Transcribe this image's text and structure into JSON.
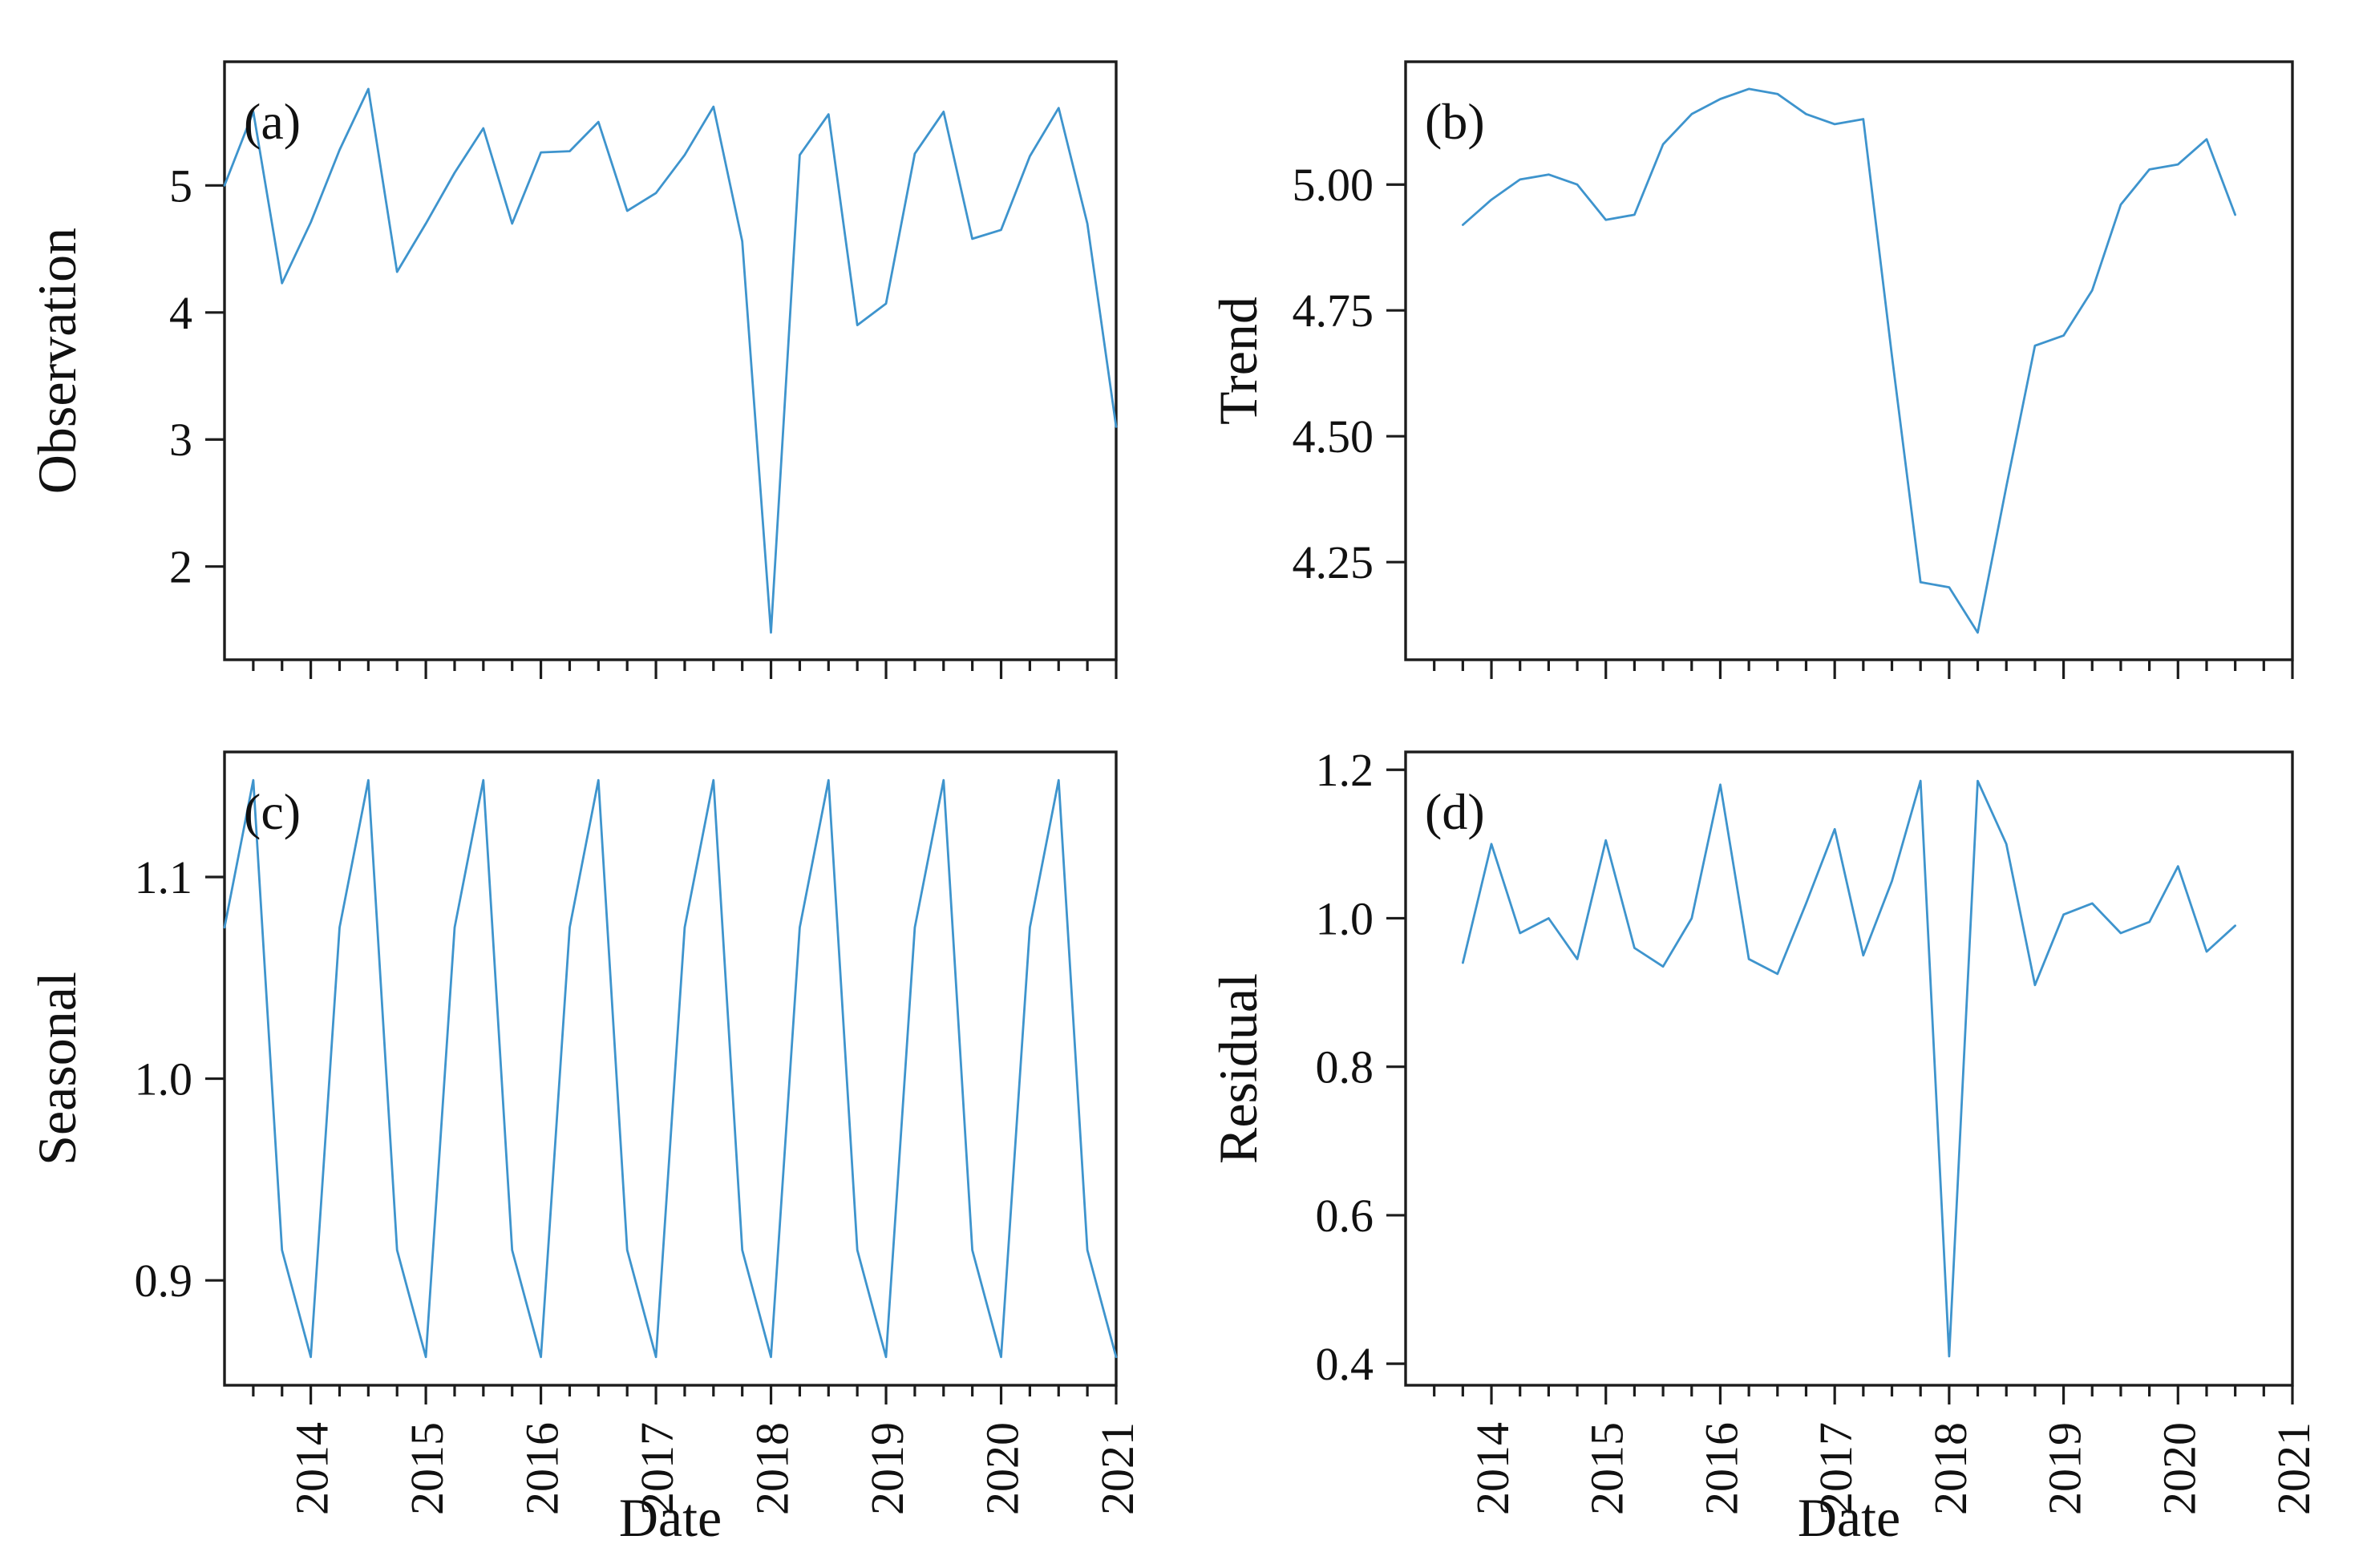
{
  "figure": {
    "kind": "seasonal-decomposition-figure",
    "line_color": "#3e94cd",
    "axis_color": "#1c1c1c",
    "xlim": [
      2013.25,
      2021.0
    ],
    "x_minor_step": 0.25,
    "x_major_ticks": [
      {
        "v": 2014,
        "label": "2014"
      },
      {
        "v": 2015,
        "label": "2015"
      },
      {
        "v": 2016,
        "label": "2016"
      },
      {
        "v": 2017,
        "label": "2017"
      },
      {
        "v": 2018,
        "label": "2018"
      },
      {
        "v": 2019,
        "label": "2019"
      },
      {
        "v": 2020,
        "label": "2020"
      },
      {
        "v": 2021,
        "label": "2021"
      }
    ]
  },
  "chart_data": [
    {
      "id": "a",
      "type": "line",
      "label": "(a)",
      "ylabel": "Observation",
      "xlabel": "",
      "x_start": 2013.25,
      "x_step": 0.25,
      "values": [
        5.0,
        5.58,
        4.23,
        4.71,
        5.28,
        5.76,
        4.32,
        4.7,
        5.1,
        5.45,
        4.7,
        5.26,
        5.27,
        5.5,
        4.8,
        4.94,
        5.24,
        5.62,
        4.56,
        1.48,
        5.24,
        5.56,
        3.9,
        4.07,
        5.25,
        5.58,
        4.58,
        4.65,
        5.23,
        5.61,
        4.7,
        3.1
      ],
      "ylim": [
        1.266,
        5.974
      ],
      "yticks": [
        {
          "v": 5,
          "label": "5"
        },
        {
          "v": 4,
          "label": "4"
        },
        {
          "v": 3,
          "label": "3"
        },
        {
          "v": 2,
          "label": "2"
        }
      ]
    },
    {
      "id": "b",
      "type": "line",
      "label": "(b)",
      "ylabel": "Trend",
      "xlabel": "",
      "x_start": 2013.75,
      "x_step": 0.25,
      "values": [
        4.92,
        4.97,
        5.01,
        5.02,
        5.0,
        4.93,
        4.94,
        5.08,
        5.14,
        5.17,
        5.19,
        5.18,
        5.14,
        5.12,
        5.13,
        4.66,
        4.21,
        4.2,
        4.11,
        4.4,
        4.68,
        4.7,
        4.79,
        4.96,
        5.03,
        5.04,
        5.09,
        4.94
      ],
      "ylim": [
        4.056,
        5.244
      ],
      "yticks": [
        {
          "v": 5.0,
          "label": "5.00"
        },
        {
          "v": 4.75,
          "label": "4.75"
        },
        {
          "v": 4.5,
          "label": "4.50"
        },
        {
          "v": 4.25,
          "label": "4.25"
        }
      ]
    },
    {
      "id": "c",
      "type": "line",
      "label": "(c)",
      "ylabel": "Seasonal",
      "xlabel": "Date",
      "x_start": 2013.25,
      "x_step": 0.25,
      "values": [
        1.075,
        1.148,
        0.915,
        0.862,
        1.075,
        1.148,
        0.915,
        0.862,
        1.075,
        1.148,
        0.915,
        0.862,
        1.075,
        1.148,
        0.915,
        0.862,
        1.075,
        1.148,
        0.915,
        0.862,
        1.075,
        1.148,
        0.915,
        0.862,
        1.075,
        1.148,
        0.915,
        0.862,
        1.075,
        1.148,
        0.915,
        0.862
      ],
      "ylim": [
        0.848,
        1.162
      ],
      "yticks": [
        {
          "v": 1.1,
          "label": "1.1"
        },
        {
          "v": 1.0,
          "label": "1.0"
        },
        {
          "v": 0.9,
          "label": "0.9"
        }
      ]
    },
    {
      "id": "d",
      "type": "line",
      "label": "(d)",
      "ylabel": "Residual",
      "xlabel": "Date",
      "x_start": 2013.75,
      "x_step": 0.25,
      "values": [
        0.94,
        1.1,
        0.98,
        1.0,
        0.945,
        1.105,
        0.96,
        0.935,
        1.0,
        1.18,
        0.945,
        0.925,
        1.02,
        1.12,
        0.95,
        1.05,
        1.185,
        0.41,
        1.185,
        1.1,
        0.91,
        1.005,
        1.02,
        0.98,
        0.995,
        1.07,
        0.955,
        0.99
      ],
      "ylim": [
        0.371,
        1.224
      ],
      "yticks": [
        {
          "v": 1.2,
          "label": "1.2"
        },
        {
          "v": 1.0,
          "label": "1.0"
        },
        {
          "v": 0.8,
          "label": "0.8"
        },
        {
          "v": 0.6,
          "label": "0.6"
        },
        {
          "v": 0.4,
          "label": "0.4"
        }
      ]
    }
  ]
}
